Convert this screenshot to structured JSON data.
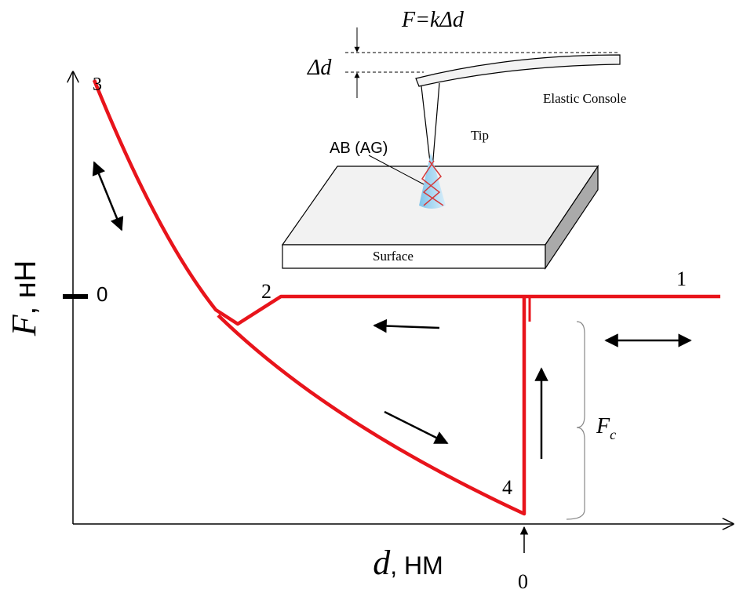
{
  "formula": "F=kΔd",
  "deflection_label": "Δd",
  "labels": {
    "console": "Elastic Console",
    "tip": "Tip",
    "tip_material": "AB (AG)",
    "surface": "Surface"
  },
  "points": [
    "1",
    "2",
    "3",
    "4"
  ],
  "y_axis": {
    "symbol": "F",
    "unit": ", нН",
    "zero": "0"
  },
  "x_axis": {
    "symbol": "d",
    "unit": ", НМ",
    "zero": "0"
  },
  "force_label": {
    "symbol": "F",
    "subscript": "c"
  }
}
